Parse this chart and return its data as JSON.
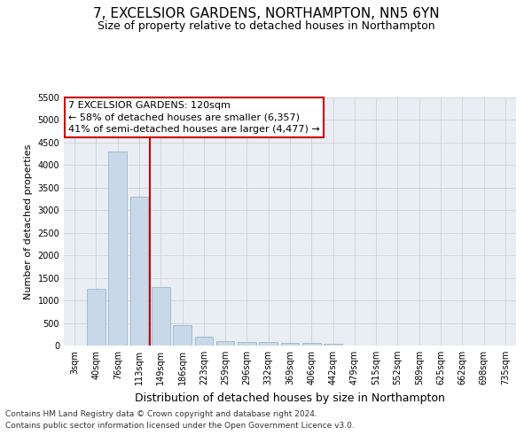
{
  "title": "7, EXCELSIOR GARDENS, NORTHAMPTON, NN5 6YN",
  "subtitle": "Size of property relative to detached houses in Northampton",
  "xlabel": "Distribution of detached houses by size in Northampton",
  "ylabel": "Number of detached properties",
  "footer1": "Contains HM Land Registry data © Crown copyright and database right 2024.",
  "footer2": "Contains public sector information licensed under the Open Government Licence v3.0.",
  "annotation_line1": "7 EXCELSIOR GARDENS: 120sqm",
  "annotation_line2": "← 58% of detached houses are smaller (6,357)",
  "annotation_line3": "41% of semi-detached houses are larger (4,477) →",
  "bar_color": "#c8d8e8",
  "bar_edge_color": "#8aaec8",
  "vline_color": "#cc0000",
  "vline_x": 3.5,
  "categories": [
    "3sqm",
    "40sqm",
    "76sqm",
    "113sqm",
    "149sqm",
    "186sqm",
    "223sqm",
    "259sqm",
    "296sqm",
    "332sqm",
    "369sqm",
    "406sqm",
    "442sqm",
    "479sqm",
    "515sqm",
    "552sqm",
    "589sqm",
    "625sqm",
    "662sqm",
    "698sqm",
    "735sqm"
  ],
  "values": [
    0,
    1250,
    4300,
    3300,
    1300,
    450,
    200,
    100,
    75,
    75,
    50,
    50,
    30,
    0,
    0,
    0,
    0,
    0,
    0,
    0,
    0
  ],
  "ylim": [
    0,
    5500
  ],
  "yticks": [
    0,
    500,
    1000,
    1500,
    2000,
    2500,
    3000,
    3500,
    4000,
    4500,
    5000,
    5500
  ],
  "grid_color": "#cccccc",
  "bg_color": "#e8eef4",
  "title_fontsize": 11,
  "subtitle_fontsize": 9,
  "ylabel_fontsize": 8,
  "xlabel_fontsize": 9,
  "tick_fontsize": 7,
  "footer_fontsize": 6.5,
  "annotation_fontsize": 8
}
